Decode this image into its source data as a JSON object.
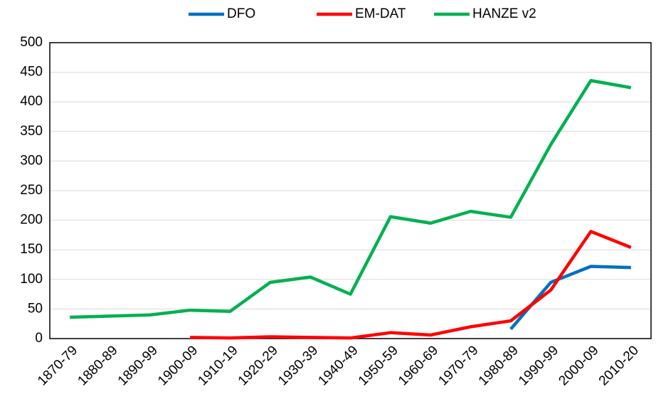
{
  "chart_data": {
    "type": "line",
    "categories": [
      "1870-79",
      "1880-89",
      "1890-99",
      "1900-09",
      "1910-19",
      "1920-29",
      "1930-39",
      "1940-49",
      "1950-59",
      "1960-69",
      "1970-79",
      "1980-89",
      "1990-99",
      "2000-09",
      "2010-20"
    ],
    "series": [
      {
        "name": "DFO",
        "color": "#0070c0",
        "values": [
          null,
          null,
          null,
          null,
          null,
          null,
          null,
          null,
          null,
          null,
          null,
          16,
          95,
          122,
          120
        ]
      },
      {
        "name": "EM-DAT",
        "color": "#ff0000",
        "values": [
          null,
          null,
          null,
          2,
          1,
          3,
          2,
          1,
          10,
          6,
          20,
          30,
          82,
          181,
          154
        ]
      },
      {
        "name": "HANZE v2",
        "color": "#00b050",
        "values": [
          36,
          38,
          40,
          48,
          46,
          95,
          104,
          75,
          206,
          195,
          215,
          205,
          328,
          436,
          424
        ]
      }
    ],
    "ylim": [
      0,
      500
    ],
    "yticks": [
      0,
      50,
      100,
      150,
      200,
      250,
      300,
      350,
      400,
      450,
      500
    ],
    "grid": true,
    "legend": "top"
  }
}
